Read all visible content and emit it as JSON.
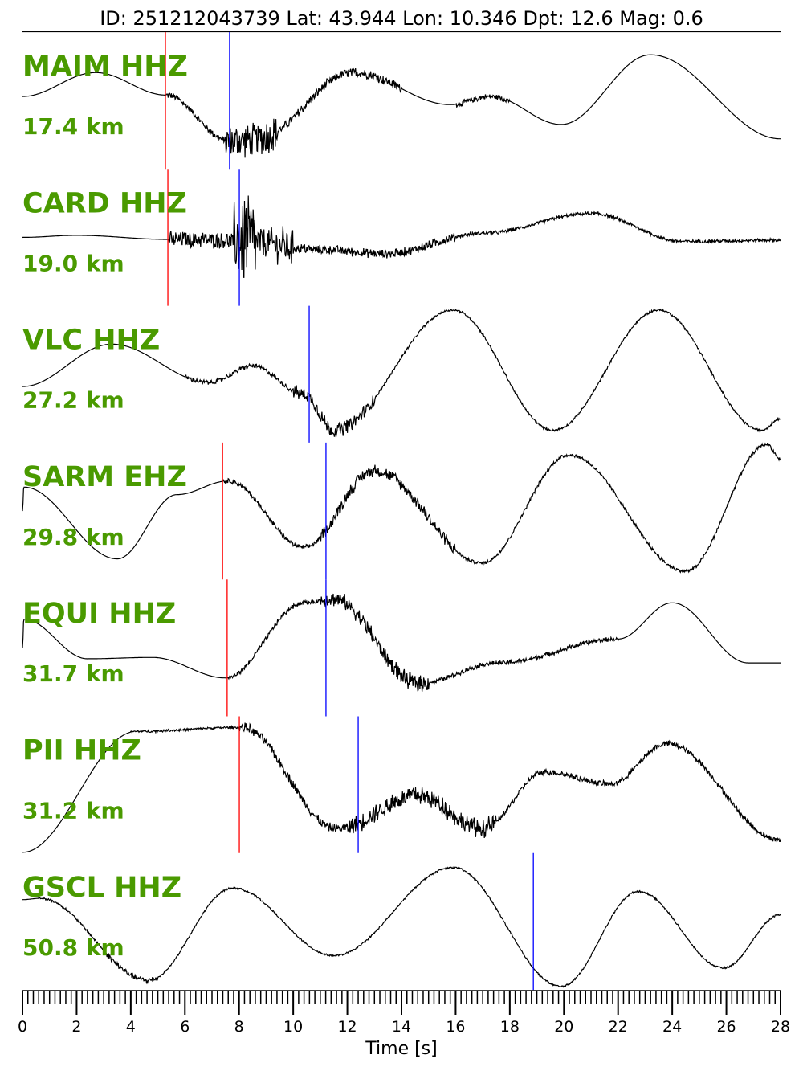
{
  "chart_data": {
    "type": "line",
    "title": "ID: 251212043739 Lat:  43.944 Lon:  10.346 Dpt:    12.6 Mag:   0.6",
    "xlabel": "Time [s]",
    "xlim": [
      0,
      28
    ],
    "xticks": [
      "0",
      "2",
      "4",
      "6",
      "8",
      "10",
      "12",
      "14",
      "16",
      "18",
      "20",
      "22",
      "24",
      "26",
      "28"
    ],
    "minor_tick_step": 0.2,
    "grid": false,
    "colors": {
      "label": "#4a9a00",
      "trace": "#000000",
      "p_pick": "#ff0000",
      "s_pick": "#0000ff"
    },
    "traces": [
      {
        "station": "MAIM HHZ",
        "distance": "17.4 km",
        "p_pick": 5.28,
        "s_pick": 7.65,
        "shape": [
          [
            0,
            0.06
          ],
          [
            2.7,
            0.41
          ],
          [
            5.3,
            0.08
          ],
          [
            7.65,
            -0.59
          ],
          [
            8.7,
            -0.55
          ],
          [
            12.2,
            0.41
          ],
          [
            15.8,
            -0.06
          ],
          [
            17.3,
            0.06
          ],
          [
            19.9,
            -0.35
          ],
          [
            23.2,
            0.67
          ],
          [
            28,
            -0.56
          ]
        ],
        "noise": [
          [
            5.3,
            7.5,
            0.06
          ],
          [
            7.5,
            9.5,
            0.3
          ],
          [
            9.5,
            14,
            0.08
          ],
          [
            16,
            18,
            0.05
          ]
        ]
      },
      {
        "station": "CARD HHZ",
        "distance": "19.0 km",
        "p_pick": 5.37,
        "s_pick": 8.01,
        "shape": [
          [
            0,
            0
          ],
          [
            2,
            0.03
          ],
          [
            5.4,
            -0.03
          ],
          [
            8,
            -0.05
          ],
          [
            11,
            -0.18
          ],
          [
            13.4,
            -0.24
          ],
          [
            17,
            0.06
          ],
          [
            21,
            0.35
          ],
          [
            24.4,
            -0.06
          ],
          [
            28,
            -0.04
          ]
        ],
        "noise": [
          [
            5.4,
            7.8,
            0.14
          ],
          [
            7.8,
            8.6,
            0.8
          ],
          [
            8.6,
            10,
            0.3
          ],
          [
            10,
            16,
            0.08
          ],
          [
            16,
            28,
            0.03
          ]
        ]
      },
      {
        "station": "VLC HHZ",
        "distance": "27.2 km",
        "p_pick": null,
        "s_pick": 10.59,
        "shape": [
          [
            0,
            -0.18
          ],
          [
            3.3,
            0.44
          ],
          [
            6.9,
            -0.12
          ],
          [
            8.5,
            0.12
          ],
          [
            10.4,
            -0.29
          ],
          [
            11.5,
            -0.82
          ],
          [
            15.9,
            0.94
          ],
          [
            19.6,
            -0.82
          ],
          [
            23.5,
            0.94
          ],
          [
            27.3,
            -0.82
          ],
          [
            28,
            -0.65
          ]
        ],
        "noise": [
          [
            6,
            10,
            0.04
          ],
          [
            10,
            13,
            0.12
          ],
          [
            13,
            28,
            0.02
          ]
        ]
      },
      {
        "station": "SARM EHZ",
        "distance": "29.8 km",
        "p_pick": 7.39,
        "s_pick": 11.21,
        "shape": [
          [
            0,
            0.0
          ],
          [
            0.05,
            0.35
          ],
          [
            3.5,
            -0.7
          ],
          [
            5.7,
            0.24
          ],
          [
            7.6,
            0.44
          ],
          [
            10.4,
            -0.53
          ],
          [
            13,
            0.59
          ],
          [
            16.95,
            -0.76
          ],
          [
            20.2,
            0.82
          ],
          [
            24.5,
            -0.88
          ],
          [
            27.5,
            0.98
          ],
          [
            28,
            0.76
          ]
        ],
        "noise": [
          [
            7.4,
            11,
            0.04
          ],
          [
            11,
            16,
            0.1
          ],
          [
            16,
            28,
            0.03
          ]
        ]
      },
      {
        "station": "EQUI HHZ",
        "distance": "31.7 km",
        "p_pick": 7.56,
        "s_pick": 11.21,
        "shape": [
          [
            0,
            0.0
          ],
          [
            0.05,
            0.42
          ],
          [
            2.4,
            -0.16
          ],
          [
            4.8,
            -0.14
          ],
          [
            7.5,
            -0.44
          ],
          [
            10.4,
            0.66
          ],
          [
            11.5,
            0.72
          ],
          [
            14.6,
            -0.52
          ],
          [
            17.6,
            -0.22
          ],
          [
            22,
            0.13
          ],
          [
            24,
            0.66
          ],
          [
            26.8,
            -0.22
          ],
          [
            28,
            -0.22
          ]
        ],
        "noise": [
          [
            7.6,
            11,
            0.04
          ],
          [
            11,
            15,
            0.14
          ],
          [
            15,
            22,
            0.04
          ]
        ]
      },
      {
        "station": "PII HHZ",
        "distance": "31.2 km",
        "p_pick": 8.01,
        "s_pick": 12.4,
        "shape": [
          [
            0,
            -0.99
          ],
          [
            4.2,
            0.78
          ],
          [
            8.1,
            0.84
          ],
          [
            11.6,
            -0.64
          ],
          [
            14.6,
            -0.16
          ],
          [
            17,
            -0.64
          ],
          [
            19.3,
            0.19
          ],
          [
            21.7,
            0.01
          ],
          [
            23.8,
            0.6
          ],
          [
            28,
            -0.81
          ]
        ],
        "noise": [
          [
            4,
            8,
            0.02
          ],
          [
            8,
            12,
            0.08
          ],
          [
            12,
            17.5,
            0.16
          ],
          [
            17.5,
            28,
            0.05
          ]
        ]
      },
      {
        "station": "GSCL HHZ",
        "distance": "50.8 km",
        "p_pick": null,
        "s_pick": 18.87,
        "shape": [
          [
            0,
            0.32
          ],
          [
            0.65,
            0.34
          ],
          [
            4.65,
            -0.86
          ],
          [
            7.77,
            0.49
          ],
          [
            11.5,
            -0.5
          ],
          [
            15.9,
            0.79
          ],
          [
            19.9,
            -0.95
          ],
          [
            22.75,
            0.44
          ],
          [
            25.9,
            -0.68
          ],
          [
            28,
            0.1
          ]
        ],
        "noise": [
          [
            0.6,
            3,
            0.02
          ],
          [
            3,
            5,
            0.05
          ],
          [
            5,
            28,
            0.015
          ]
        ]
      }
    ]
  }
}
